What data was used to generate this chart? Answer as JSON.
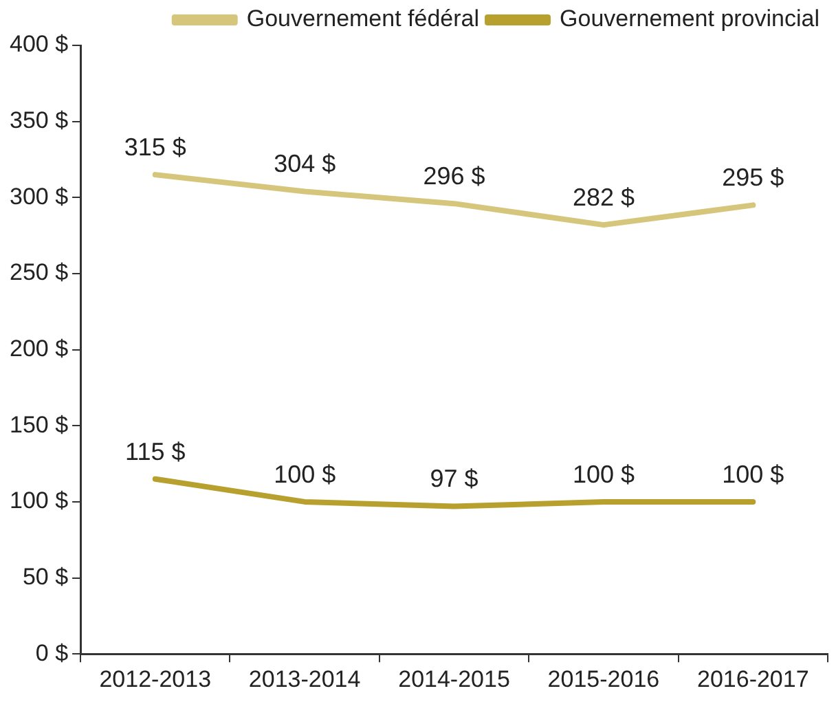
{
  "chart_data": {
    "type": "line",
    "categories": [
      "2012-2013",
      "2013-2014",
      "2014-2015",
      "2015-2016",
      "2016-2017"
    ],
    "series": [
      {
        "name": "Gouvernement fédéral",
        "color": "#d6c67c",
        "values": [
          315,
          304,
          296,
          282,
          295
        ],
        "value_labels": [
          "315 $",
          "304 $",
          "296 $",
          "282 $",
          "295 $"
        ]
      },
      {
        "name": "Gouvernement provincial",
        "color": "#b8a02e",
        "values": [
          115,
          100,
          97,
          100,
          100
        ],
        "value_labels": [
          "115 $",
          "100 $",
          "97 $",
          "100 $",
          "100 $"
        ]
      }
    ],
    "ylim": [
      0,
      400
    ],
    "yticks": [
      {
        "value": 0,
        "label": "0 $"
      },
      {
        "value": 50,
        "label": "50 $"
      },
      {
        "value": 100,
        "label": "100 $"
      },
      {
        "value": 150,
        "label": "150 $"
      },
      {
        "value": 200,
        "label": "200 $"
      },
      {
        "value": 250,
        "label": "250 $"
      },
      {
        "value": 300,
        "label": "300 $"
      },
      {
        "value": 350,
        "label": "350 $"
      },
      {
        "value": 400,
        "label": "400 $"
      }
    ],
    "grid": false,
    "legend": "top right",
    "marker": "none",
    "line_style": "solid"
  }
}
